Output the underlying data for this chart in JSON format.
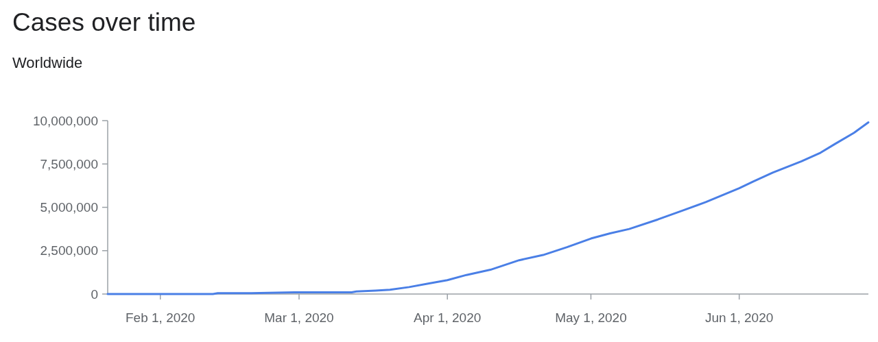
{
  "chart_data": {
    "type": "line",
    "title": "Cases over time",
    "subtitle": "Worldwide",
    "x": [
      "2020-01-21",
      "2020-01-25",
      "2020-01-31",
      "2020-02-05",
      "2020-02-12",
      "2020-02-13",
      "2020-02-20",
      "2020-02-29",
      "2020-03-05",
      "2020-03-12",
      "2020-03-13",
      "2020-03-17",
      "2020-03-20",
      "2020-03-24",
      "2020-03-28",
      "2020-04-01",
      "2020-04-05",
      "2020-04-10",
      "2020-04-16",
      "2020-04-21",
      "2020-04-26",
      "2020-05-01",
      "2020-05-05",
      "2020-05-09",
      "2020-05-15",
      "2020-05-20",
      "2020-05-25",
      "2020-06-01",
      "2020-06-04",
      "2020-06-08",
      "2020-06-14",
      "2020-06-18",
      "2020-06-21",
      "2020-06-25",
      "2020-06-28"
    ],
    "series": [
      {
        "color": "#4a7fe6",
        "values": [
          0,
          0,
          0,
          0,
          0,
          50000,
          50000,
          100000,
          100000,
          100000,
          150000,
          200000,
          250000,
          400000,
          600000,
          800000,
          1100000,
          1400000,
          1950000,
          2250000,
          2700000,
          3200000,
          3500000,
          3750000,
          4300000,
          4800000,
          5300000,
          6100000,
          6500000,
          7000000,
          7650000,
          8150000,
          8650000,
          9300000,
          9900000
        ]
      }
    ],
    "xlim": [
      "2020-01-21",
      "2020-06-28"
    ],
    "xticks": [
      {
        "value": "2020-02-01",
        "label": "Feb 1, 2020"
      },
      {
        "value": "2020-03-01",
        "label": "Mar 1, 2020"
      },
      {
        "value": "2020-04-01",
        "label": "Apr 1, 2020"
      },
      {
        "value": "2020-05-01",
        "label": "May 1, 2020"
      },
      {
        "value": "2020-06-01",
        "label": "Jun 1, 2020"
      }
    ],
    "ylim": [
      0,
      10000000
    ],
    "yticks": [
      {
        "value": 0,
        "label": "0"
      },
      {
        "value": 2500000,
        "label": "2,500,000"
      },
      {
        "value": 5000000,
        "label": "5,000,000"
      },
      {
        "value": 7500000,
        "label": "7,500,000"
      },
      {
        "value": 10000000,
        "label": "10,000,000"
      }
    ]
  }
}
